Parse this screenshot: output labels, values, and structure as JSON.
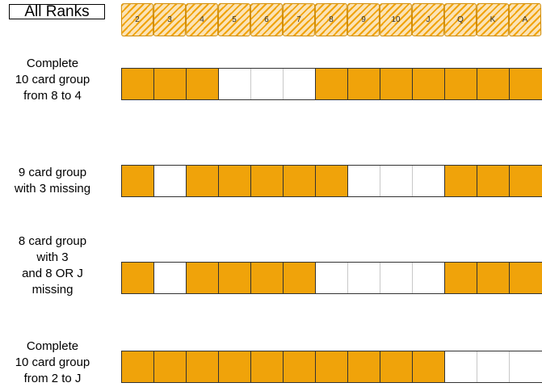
{
  "title": "All Ranks",
  "ranks": [
    "2",
    "3",
    "4",
    "5",
    "6",
    "7",
    "8",
    "9",
    "10",
    "J",
    "Q",
    "K",
    "A"
  ],
  "colors": {
    "filled": "#f0a30a",
    "empty": "#ffffff"
  },
  "rows": [
    {
      "label": "Complete\n10 card group\nfrom 8 to 4",
      "cells": [
        1,
        1,
        1,
        0,
        0,
        0,
        1,
        1,
        1,
        1,
        1,
        1,
        1
      ]
    },
    {
      "label": "9 card group\nwith 3 missing",
      "cells": [
        1,
        0,
        1,
        1,
        1,
        1,
        1,
        0,
        0,
        0,
        1,
        1,
        1
      ]
    },
    {
      "label": "8 card group\nwith 3\nand 8 OR J\nmissing",
      "cells": [
        1,
        0,
        1,
        1,
        1,
        1,
        0,
        0,
        0,
        0,
        1,
        1,
        1
      ]
    },
    {
      "label": "Complete\n10 card group\nfrom 2 to J",
      "cells": [
        1,
        1,
        1,
        1,
        1,
        1,
        1,
        1,
        1,
        1,
        0,
        0,
        0
      ]
    }
  ]
}
